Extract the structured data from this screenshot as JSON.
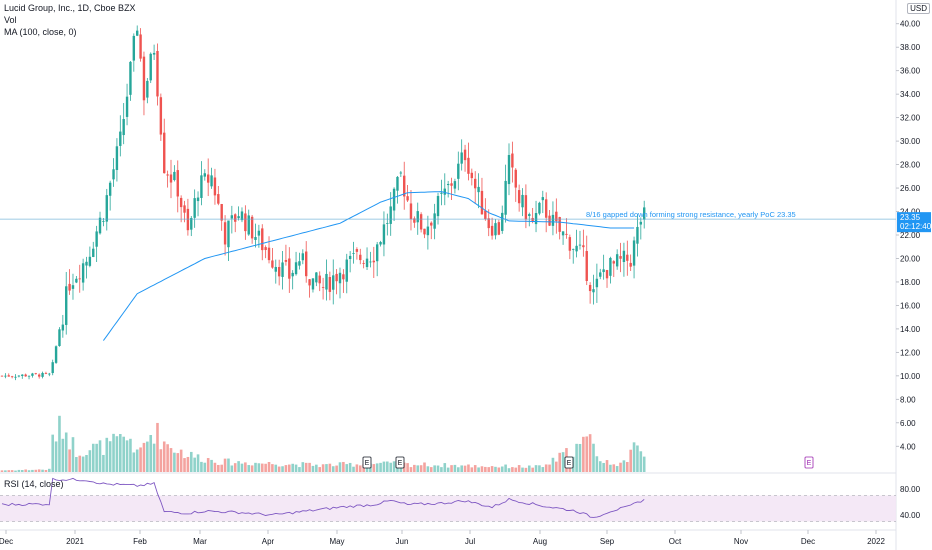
{
  "legend": {
    "symbol": "Lucid Group, Inc., 1D, Cboe BZX",
    "vol": "Vol",
    "ma": "MA (100, close, 0)",
    "rsi": "RSI (14, close)"
  },
  "currency": "USD",
  "colors": {
    "up": "#26a69a",
    "down": "#ef5350",
    "up_vol": "#8fd2ca",
    "down_vol": "#f4a39f",
    "ma": "#2196f3",
    "rsi": "#7e57c2",
    "rsi_band": "#f3e5f5",
    "price_tag": "#2196f3",
    "earnings": "#9c27b0"
  },
  "chart_data": {
    "type": "candlestick",
    "x_axis": {
      "ticks": [
        "Dec",
        "2021",
        "Feb",
        "Mar",
        "Apr",
        "May",
        "Jun",
        "Jul",
        "Aug",
        "Sep",
        "Oct",
        "Nov",
        "Dec",
        "2022"
      ]
    },
    "y_axis": {
      "ticks": [
        "40.00",
        "38.00",
        "36.00",
        "34.00",
        "32.00",
        "30.00",
        "28.00",
        "26.00",
        "24.00",
        "22.00",
        "20.00",
        "18.00",
        "16.00",
        "14.00",
        "12.00",
        "10.00",
        "8.00",
        "6.00",
        "4.00"
      ],
      "range": [
        3,
        41
      ]
    },
    "rsi_axis": {
      "ticks": [
        "80.00",
        "40.00"
      ],
      "band": [
        30,
        70
      ]
    },
    "annotation": "8/16 gapped down forming strong resistance, yearly PoC 23.35",
    "resistance_level": 23.35,
    "price_tag": "23.35",
    "time_tag": "02:12:40",
    "earnings_markers": [
      "E",
      "E",
      "E",
      "E"
    ],
    "anchors_price": [
      [
        0,
        10
      ],
      [
        14,
        10.1
      ],
      [
        15,
        11
      ],
      [
        17,
        14
      ],
      [
        20,
        18
      ],
      [
        25,
        20
      ],
      [
        30,
        24
      ],
      [
        35,
        30
      ],
      [
        38,
        36
      ],
      [
        40,
        40
      ],
      [
        42,
        34
      ],
      [
        45,
        38
      ],
      [
        48,
        28
      ],
      [
        52,
        26
      ],
      [
        55,
        22
      ],
      [
        58,
        26
      ],
      [
        62,
        27
      ],
      [
        66,
        22
      ],
      [
        70,
        24
      ],
      [
        75,
        22
      ],
      [
        80,
        20
      ],
      [
        85,
        18.5
      ],
      [
        88,
        20
      ],
      [
        92,
        18
      ],
      [
        95,
        17.5
      ],
      [
        100,
        19
      ],
      [
        105,
        20
      ],
      [
        110,
        20.5
      ],
      [
        115,
        24
      ],
      [
        118,
        27
      ],
      [
        121,
        24
      ],
      [
        125,
        22.5
      ],
      [
        130,
        25
      ],
      [
        134,
        27
      ],
      [
        137,
        29
      ],
      [
        140,
        26
      ],
      [
        144,
        23
      ],
      [
        147,
        22.5
      ],
      [
        150,
        28
      ],
      [
        153,
        25
      ],
      [
        157,
        23
      ],
      [
        160,
        24.5
      ],
      [
        164,
        22.5
      ],
      [
        168,
        21.5
      ],
      [
        172,
        20
      ],
      [
        175,
        17
      ],
      [
        178,
        19
      ],
      [
        182,
        19.5
      ],
      [
        186,
        20
      ],
      [
        189,
        23.35
      ],
      [
        190,
        23.5
      ]
    ],
    "anchors_ma": [
      [
        30,
        13
      ],
      [
        40,
        17
      ],
      [
        60,
        20
      ],
      [
        80,
        21.5
      ],
      [
        100,
        23
      ],
      [
        112,
        24.8
      ],
      [
        120,
        25.6
      ],
      [
        130,
        25.7
      ],
      [
        138,
        25.1
      ],
      [
        144,
        23.9
      ],
      [
        150,
        23.2
      ],
      [
        165,
        23.1
      ],
      [
        180,
        22.6
      ],
      [
        187,
        22.6
      ]
    ],
    "anchors_rsi": [
      [
        0,
        56
      ],
      [
        14,
        57
      ],
      [
        15,
        95
      ],
      [
        25,
        94
      ],
      [
        30,
        88
      ],
      [
        40,
        85
      ],
      [
        45,
        88
      ],
      [
        48,
        45
      ],
      [
        55,
        43
      ],
      [
        60,
        46
      ],
      [
        70,
        44
      ],
      [
        80,
        40
      ],
      [
        90,
        46
      ],
      [
        100,
        52
      ],
      [
        110,
        56
      ],
      [
        115,
        62
      ],
      [
        120,
        56
      ],
      [
        130,
        58
      ],
      [
        137,
        62
      ],
      [
        145,
        52
      ],
      [
        150,
        64
      ],
      [
        160,
        54
      ],
      [
        170,
        46
      ],
      [
        175,
        36
      ],
      [
        180,
        46
      ],
      [
        185,
        52
      ],
      [
        190,
        64
      ]
    ],
    "anchors_vol": [
      [
        0,
        2
      ],
      [
        14,
        3
      ],
      [
        15,
        40
      ],
      [
        18,
        55
      ],
      [
        22,
        25
      ],
      [
        30,
        30
      ],
      [
        38,
        40
      ],
      [
        40,
        20
      ],
      [
        45,
        50
      ],
      [
        48,
        35
      ],
      [
        55,
        20
      ],
      [
        65,
        12
      ],
      [
        80,
        10
      ],
      [
        95,
        8
      ],
      [
        110,
        10
      ],
      [
        120,
        9
      ],
      [
        140,
        7
      ],
      [
        160,
        6
      ],
      [
        175,
        40
      ],
      [
        177,
        12
      ],
      [
        185,
        10
      ],
      [
        188,
        42
      ],
      [
        190,
        20
      ]
    ]
  }
}
